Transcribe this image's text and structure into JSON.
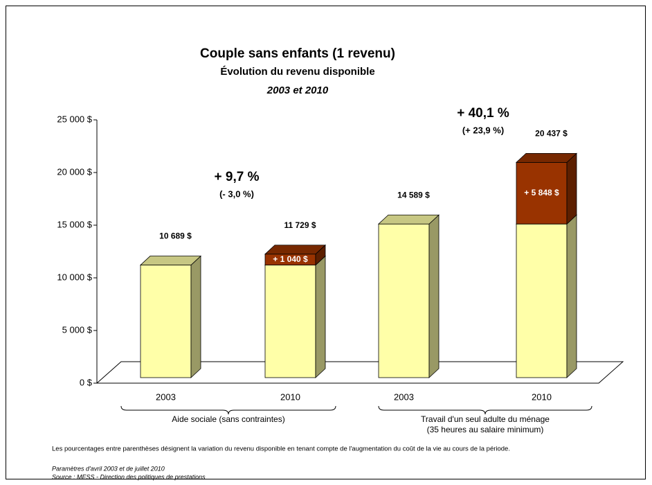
{
  "chart_data": {
    "type": "bar3d-stacked",
    "title": "Couple sans enfants (1 revenu)",
    "subtitle": "Évolution du revenu disponible",
    "subtitle2": "2003 et 2010",
    "categories": [
      "2003",
      "2010",
      "2003",
      "2010"
    ],
    "groups": [
      {
        "label": "Aide sociale (sans contraintes)"
      },
      {
        "label": "Travail d'un seul adulte du ménage",
        "label2": "(35 heures au salaire minimum)"
      }
    ],
    "series": [
      {
        "color": "#ffffa8",
        "values": [
          10689,
          10689,
          14589,
          14589
        ]
      },
      {
        "color": "#993300",
        "values": [
          null,
          1040,
          null,
          5848
        ],
        "value_labels": [
          null,
          "+ 1 040 $",
          null,
          "+ 5 848 $"
        ]
      }
    ],
    "total_labels": [
      "10 689 $",
      "11 729 $",
      "14 589 $",
      "20 437 $"
    ],
    "annotations": [
      {
        "main": "+ 9,7 %",
        "sub": "(- 3,0 %)"
      },
      {
        "main": "+ 40,1 %",
        "sub": "(+ 23,9 %)"
      }
    ],
    "ylim": [
      0,
      25000
    ],
    "yticks": [
      {
        "value": 0,
        "label": "0 $"
      },
      {
        "value": 5000,
        "label": "5 000 $"
      },
      {
        "value": 10000,
        "label": "10 000 $"
      },
      {
        "value": 15000,
        "label": "15 000 $"
      },
      {
        "value": 20000,
        "label": "20 000 $"
      },
      {
        "value": 25000,
        "label": "25 000 $"
      }
    ],
    "note": "Les pourcentages entre parenthèses désignent la variation du revenu disponible en tenant compte de l'augmentation du coût de la vie au cours de la période.",
    "source1": "Paramètres d'avril 2003 et de juillet 2010",
    "source2": "Source : MESS - Direction des politiques de prestations"
  }
}
